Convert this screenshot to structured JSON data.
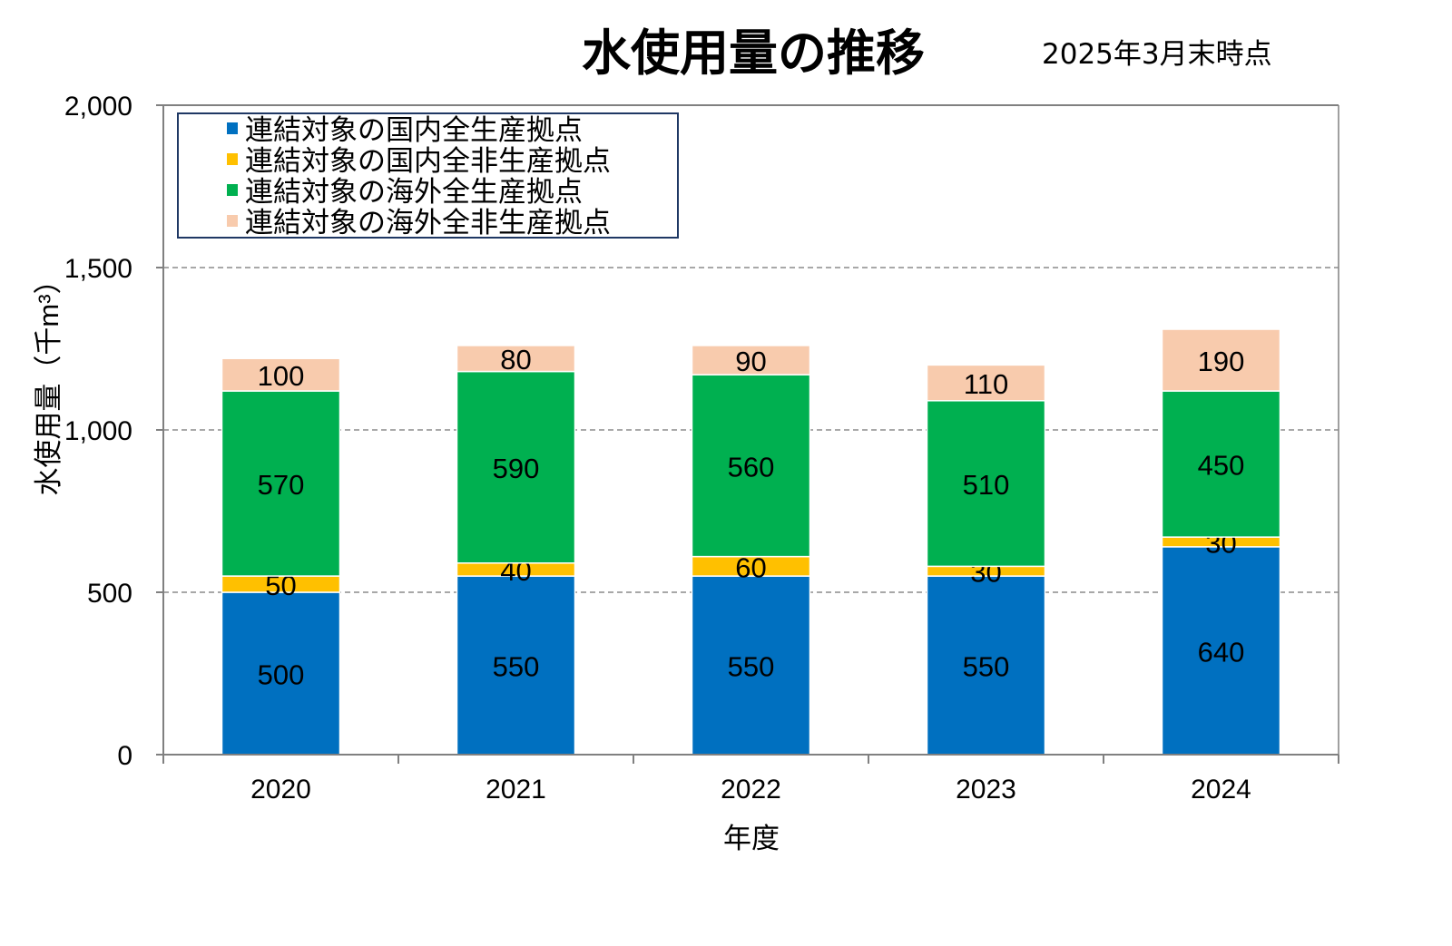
{
  "chart_data": {
    "type": "bar",
    "stacked": true,
    "title": "水使用量の推移",
    "subtitle": "2025年3月末時点",
    "xlabel": "年度",
    "ylabel": "水使用量（千m³）",
    "categories": [
      "2020",
      "2021",
      "2022",
      "2023",
      "2024"
    ],
    "ylim": [
      0,
      2000
    ],
    "yticks": [
      0,
      500,
      1000,
      1500,
      2000
    ],
    "ytick_labels": [
      "0",
      "500",
      "1,000",
      "1,500",
      "2,000"
    ],
    "grid": true,
    "legend_position": "top-left",
    "series": [
      {
        "name": "連結対象の国内全生産拠点",
        "color": "#0070C0",
        "values": [
          500,
          550,
          550,
          550,
          640
        ]
      },
      {
        "name": "連結対象の国内全非生産拠点",
        "color": "#FFC000",
        "values": [
          50,
          40,
          60,
          30,
          30
        ]
      },
      {
        "name": "連結対象の海外全生産拠点",
        "color": "#00B050",
        "values": [
          570,
          590,
          560,
          510,
          450
        ]
      },
      {
        "name": "連結対象の海外全非生産拠点",
        "color": "#F8CBAD",
        "values": [
          100,
          80,
          90,
          110,
          190
        ]
      }
    ]
  }
}
